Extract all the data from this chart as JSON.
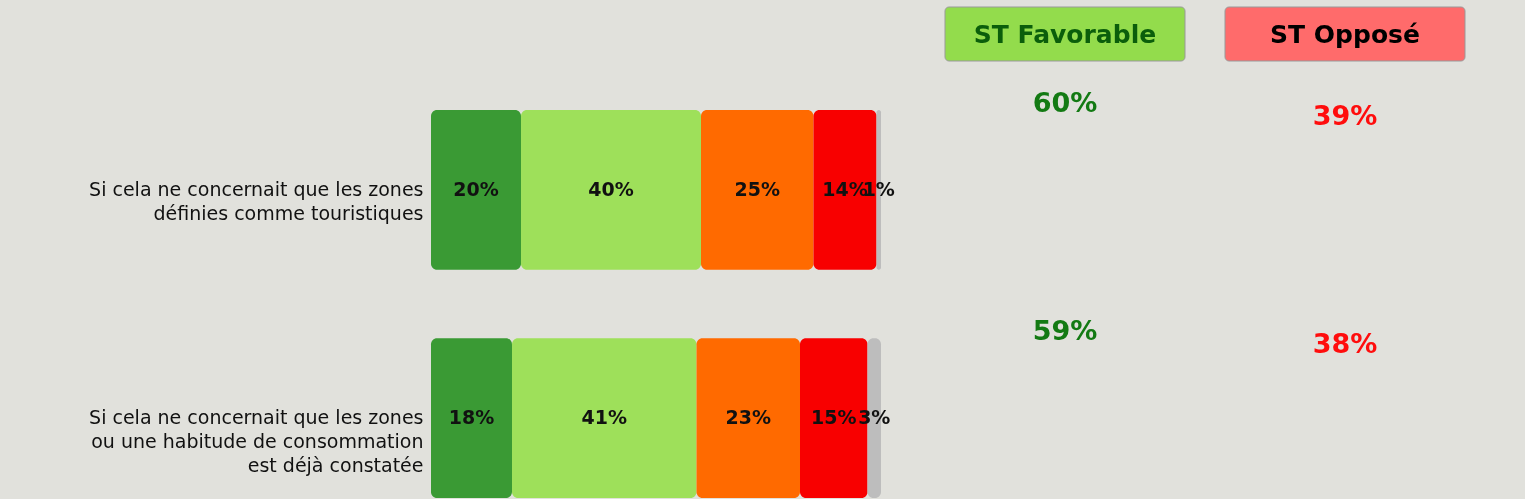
{
  "chart_data": {
    "type": "bar",
    "orientation": "horizontal",
    "stacked": true,
    "categories": [
      "Si cela ne concernait que les zones\ndéfinies comme touristiques",
      "Si cela ne concernait que les zones\nou une habitude de consommation\nest déjà constatée"
    ],
    "series": [
      {
        "color": "#3a9a34",
        "values": [
          20,
          18
        ],
        "value_labels": [
          "20%",
          "18%"
        ]
      },
      {
        "color": "#9ee05a",
        "values": [
          40,
          41
        ],
        "value_labels": [
          "40%",
          "41%"
        ]
      },
      {
        "color": "#ff6a00",
        "values": [
          25,
          23
        ],
        "value_labels": [
          "25%",
          "23%"
        ]
      },
      {
        "color": "#f80000",
        "values": [
          14,
          15
        ],
        "value_labels": [
          "14%",
          "15%"
        ]
      },
      {
        "color": "#bdbdbd",
        "values": [
          1,
          3
        ],
        "value_labels": [
          "1%",
          "3%"
        ]
      }
    ],
    "annotations": [
      "ST Favorable",
      "ST Opposé",
      "60%",
      "39%",
      "59%",
      "38%"
    ]
  }
}
